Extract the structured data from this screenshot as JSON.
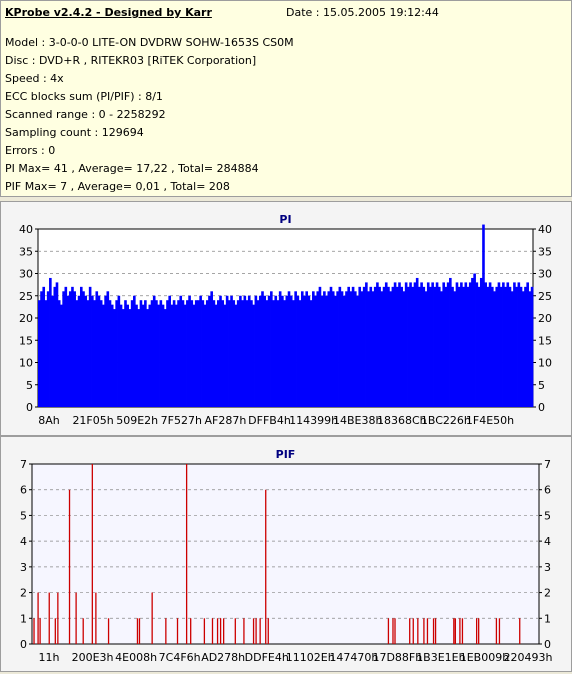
{
  "info": {
    "title": "KProbe v2.4.2 - Designed by Karr",
    "date": "Date : 15.05.2005 19:12:44",
    "lines": [
      "Model : 3-0-0-0 LITE-ON DVDRW SOHW-1653S CS0M",
      "Disc : DVD+R , RITEKR03 [RiTEK Corporation]",
      "Speed : 4x",
      "ECC blocks sum (PI/PIF) : 8/1",
      "Scanned range : 0 - 2258292",
      "Sampling count : 129694",
      "Errors : 0",
      "PI Max= 41 , Average= 17,22 , Total= 284884",
      "PIF Max= 7 , Average= 0,01 , Total= 208"
    ]
  },
  "colors": {
    "pi": "#0000ff",
    "pif": "#cc0000",
    "axis_title": "#000080",
    "plot_bg_pi": "#ffffff",
    "plot_bg_pif": "#f6f6ff"
  },
  "chart_data": [
    {
      "type": "area",
      "title": "PI",
      "ylim": [
        0,
        40
      ],
      "yticks": [
        0,
        5,
        10,
        15,
        20,
        25,
        30,
        35,
        40
      ],
      "xticklabels": [
        "8Ah",
        "21F05h",
        "509E2h",
        "7F527h",
        "AF287h",
        "DFFB4h",
        "114399h",
        "14BE38h",
        "18368Ch",
        "1BC226h",
        "1F4E50h"
      ],
      "grid": true,
      "series": [
        {
          "values": [
            24,
            26,
            27,
            24,
            26,
            29,
            25,
            27,
            28,
            24,
            23,
            26,
            27,
            25,
            26,
            27,
            26,
            24,
            25,
            27,
            26,
            25,
            24,
            27,
            25,
            24,
            26,
            25,
            24,
            23,
            25,
            26,
            24,
            23,
            22,
            24,
            25,
            23,
            22,
            24,
            23,
            22,
            24,
            25,
            23,
            22,
            24,
            23,
            24,
            22,
            23,
            24,
            25,
            24,
            23,
            24,
            23,
            22,
            24,
            25,
            23,
            24,
            23,
            24,
            25,
            24,
            23,
            24,
            25,
            24,
            23,
            24,
            24,
            25,
            24,
            23,
            24,
            25,
            26,
            24,
            23,
            24,
            25,
            24,
            23,
            25,
            24,
            25,
            24,
            23,
            24,
            25,
            24,
            25,
            24,
            25,
            24,
            23,
            25,
            24,
            25,
            26,
            25,
            24,
            25,
            26,
            24,
            25,
            24,
            26,
            25,
            24,
            25,
            26,
            25,
            24,
            26,
            25,
            24,
            26,
            25,
            26,
            25,
            24,
            26,
            25,
            26,
            27,
            25,
            26,
            25,
            26,
            27,
            26,
            25,
            26,
            27,
            26,
            25,
            26,
            27,
            26,
            27,
            26,
            25,
            27,
            26,
            27,
            28,
            26,
            27,
            26,
            27,
            28,
            27,
            26,
            27,
            28,
            27,
            26,
            27,
            28,
            27,
            28,
            27,
            26,
            28,
            27,
            28,
            27,
            28,
            29,
            27,
            28,
            27,
            26,
            28,
            27,
            28,
            27,
            28,
            27,
            26,
            28,
            27,
            28,
            29,
            27,
            26,
            28,
            27,
            28,
            27,
            28,
            27,
            28,
            29,
            30,
            28,
            27,
            29,
            41,
            28,
            27,
            28,
            27,
            26,
            27,
            28,
            27,
            28,
            27,
            28,
            27,
            26,
            28,
            27,
            28,
            27,
            26,
            27,
            28,
            26,
            27
          ]
        }
      ]
    },
    {
      "type": "bar",
      "title": "PIF",
      "ylim": [
        0,
        7
      ],
      "yticks": [
        0,
        1,
        2,
        3,
        4,
        5,
        6,
        7
      ],
      "xticklabels": [
        "11h",
        "200E3h",
        "4E008h",
        "7C4F6h",
        "AD278h",
        "DDFE4h",
        "11102Eh",
        "147470h",
        "17D88Fh",
        "1B3E1Eh",
        "1EB009h",
        "220493h"
      ],
      "grid": true,
      "series": [
        {
          "x": [
            0.004,
            0.012,
            0.016,
            0.034,
            0.046,
            0.051,
            0.074,
            0.087,
            0.101,
            0.119,
            0.126,
            0.151,
            0.208,
            0.212,
            0.237,
            0.264,
            0.287,
            0.305,
            0.313,
            0.34,
            0.356,
            0.366,
            0.372,
            0.378,
            0.401,
            0.418,
            0.437,
            0.442,
            0.45,
            0.461,
            0.466,
            0.703,
            0.712,
            0.716,
            0.745,
            0.752,
            0.761,
            0.773,
            0.78,
            0.792,
            0.796,
            0.832,
            0.835,
            0.844,
            0.849,
            0.877,
            0.881,
            0.916,
            0.922,
            0.962
          ],
          "values": [
            1,
            2,
            1,
            2,
            1,
            2,
            6,
            2,
            1,
            7,
            2,
            1,
            1,
            1,
            2,
            1,
            1,
            7,
            1,
            1,
            1,
            1,
            1,
            1,
            1,
            1,
            1,
            1,
            1,
            6,
            1,
            1,
            1,
            1,
            1,
            1,
            1,
            1,
            1,
            1,
            1,
            1,
            1,
            1,
            1,
            1,
            1,
            1,
            1,
            1
          ]
        }
      ]
    }
  ]
}
